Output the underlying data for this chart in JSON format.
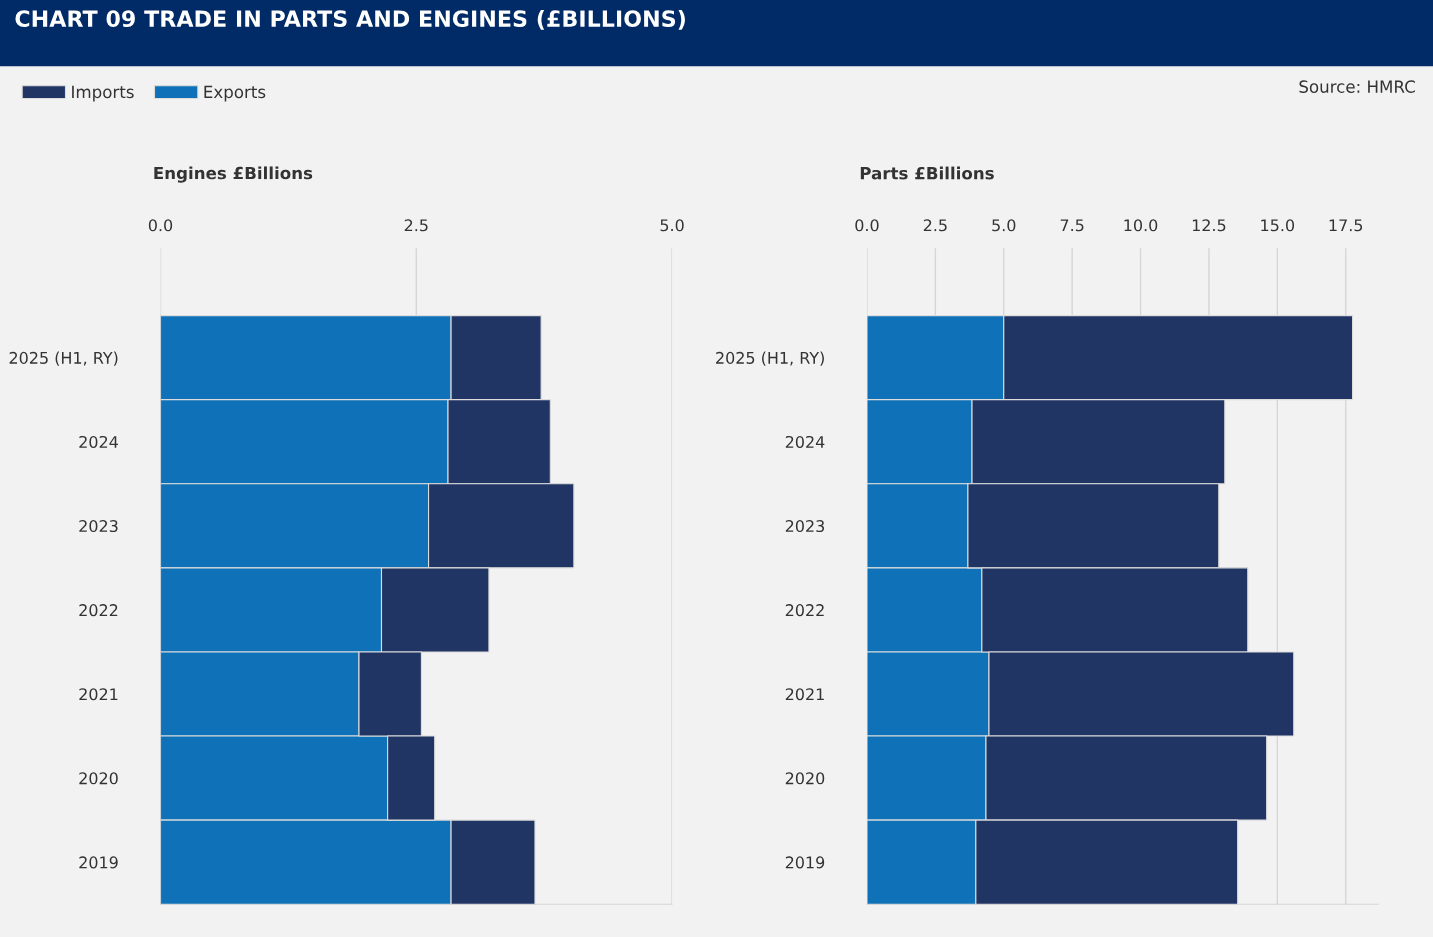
{
  "chart_data": [
    {
      "type": "bar",
      "title": "CHART 09 TRADE IN PARTS AND ENGINES (£BILLIONS)",
      "xlabel": "Engines £Billions",
      "orientation": "horizontal",
      "stacked": true,
      "legend": "top left",
      "grid": "x",
      "annotations": [
        "Source: HMRC"
      ],
      "categories": [
        "2025 (H1, RY)",
        "2024",
        "2023",
        "2022",
        "2021",
        "2020",
        "2019"
      ],
      "xlim": [
        0,
        5.0
      ],
      "xticks": [
        {
          "value": 0,
          "label": "0.0"
        },
        2.5,
        {
          "value": 5,
          "label": "5.0"
        }
      ],
      "series": [
        {
          "name": "Exports",
          "color": "#0f72b9",
          "values": [
            2.84,
            2.81,
            2.62,
            2.16,
            1.94,
            2.22,
            2.84
          ]
        },
        {
          "name": "Imports",
          "color": "#203564",
          "values": [
            0.88,
            1.0,
            1.42,
            1.05,
            0.61,
            0.46,
            0.82
          ]
        }
      ]
    },
    {
      "type": "bar",
      "xlabel": "Parts £Billions",
      "orientation": "horizontal",
      "stacked": true,
      "grid": "x",
      "categories": [
        "2025 (H1, RY)",
        "2024",
        "2023",
        "2022",
        "2021",
        "2020",
        "2019"
      ],
      "xlim": [
        0,
        18.7
      ],
      "xticks": [
        {
          "value": 0,
          "label": "0.0"
        },
        2.5,
        {
          "value": 5,
          "label": "5.0"
        },
        7.5,
        {
          "value": 10,
          "label": "10.0"
        },
        12.5,
        {
          "value": 15,
          "label": "15.0"
        },
        17.5
      ],
      "series": [
        {
          "color": "#0f72b9",
          "values": [
            5.0,
            3.84,
            3.69,
            4.2,
            4.46,
            4.35,
            3.98
          ]
        },
        {
          "color": "#203564",
          "values": [
            12.75,
            9.24,
            9.17,
            9.72,
            11.14,
            10.26,
            9.57
          ]
        }
      ]
    }
  ]
}
